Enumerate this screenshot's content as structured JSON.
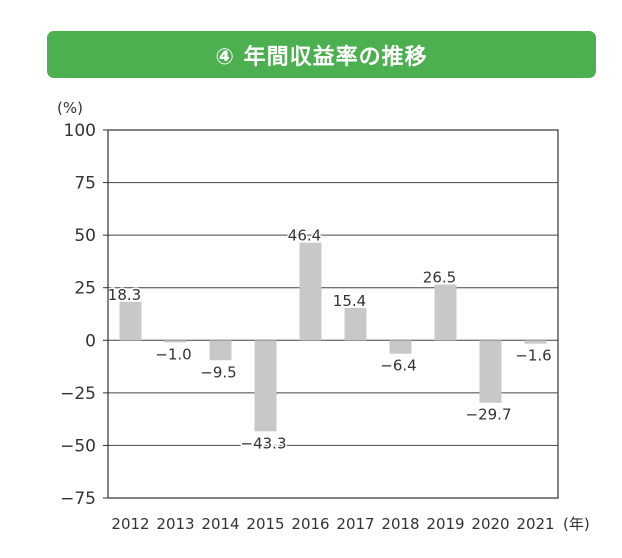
{
  "title": "④ 年間収益率の推移",
  "chart_data": {
    "type": "bar",
    "title": "④ 年間収益率の推移",
    "ylabel": "(%)",
    "xlabel": "(年)",
    "categories": [
      "2012",
      "2013",
      "2014",
      "2015",
      "2016",
      "2017",
      "2018",
      "2019",
      "2020",
      "2021"
    ],
    "values": [
      18.3,
      -1.0,
      -9.5,
      -43.3,
      46.4,
      15.4,
      -6.4,
      26.5,
      -29.7,
      -1.6
    ],
    "value_labels": [
      "18.3",
      "−1.0",
      "−9.5",
      "−43.3",
      "46.4",
      "15.4",
      "−6.4",
      "26.5",
      "−29.7",
      "−1.6"
    ],
    "ylim": [
      -75,
      100
    ],
    "yticks": [
      100,
      75,
      50,
      25,
      0,
      -25,
      -50,
      -75
    ],
    "ytick_labels": [
      "100",
      "75",
      "50",
      "25",
      "0",
      "−25",
      "−50",
      "−75"
    ],
    "grid": true,
    "bar_color": "#c8c8c8"
  }
}
